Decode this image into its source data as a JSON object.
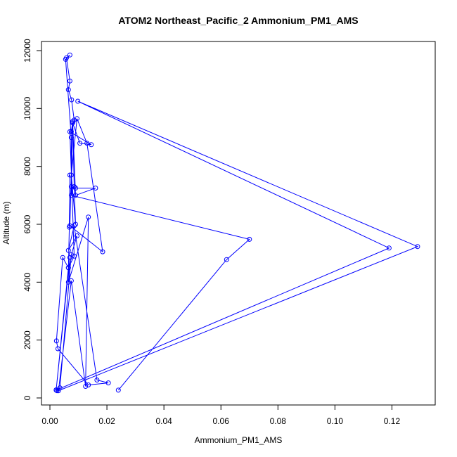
{
  "chart_data": {
    "type": "line",
    "title": "ATOM2 Northeast_Pacific_2 Ammonium_PM1_AMS",
    "xlabel": "Ammonium_PM1_AMS",
    "ylabel": "Altitude (m)",
    "xlim": [
      0,
      0.13
    ],
    "ylim": [
      0,
      12000
    ],
    "x_ticks": [
      0,
      0.02,
      0.04,
      0.06,
      0.08,
      0.1,
      0.12
    ],
    "x_tick_labels": [
      "0.00",
      "0.02",
      "0.04",
      "0.06",
      "0.08",
      "0.10",
      "0.12"
    ],
    "y_ticks": [
      0,
      2000,
      4000,
      6000,
      8000,
      10000,
      12000
    ],
    "y_tick_labels": [
      "0",
      "2000",
      "4000",
      "6000",
      "8000",
      "10000",
      "12000"
    ],
    "grid": false,
    "legend": "none",
    "series_color": "#0000ff",
    "series": [
      {
        "x": [
          0.024,
          0.062,
          0.07,
          0.0075,
          0.0075,
          0.0055,
          0.007,
          0.0058,
          0.007,
          0.0065,
          0.0076,
          0.0085,
          0.0075,
          0.008,
          0.0085,
          0.009,
          0.0075,
          0.0095,
          0.013,
          0.0185,
          0.007,
          0.008,
          0.0075,
          0.009,
          0.016,
          0.009,
          0.008,
          0.0105,
          0.0145,
          0.007,
          0.0085,
          0.0065,
          0.0045,
          0.0023,
          0.0028,
          0.0135,
          0.0205,
          0.0165,
          0.0085,
          0.0065,
          0.0095,
          0.0075,
          0.0035,
          0.0025,
          0.0022,
          0.119,
          0.0098,
          0.129,
          0.003,
          0.0075,
          0.0125,
          0.0135,
          0.0065,
          0.007,
          0.0022,
          0.0065,
          0.0068,
          0.007
        ],
        "y": [
          270,
          4780,
          5480,
          7000,
          9000,
          11700,
          11850,
          11750,
          10950,
          10650,
          10300,
          9600,
          9200,
          9550,
          7300,
          6000,
          7700,
          9650,
          8800,
          5050,
          5950,
          9550,
          7300,
          7250,
          7250,
          7000,
          9500,
          8800,
          8750,
          9200,
          4900,
          4500,
          4850,
          1970,
          1700,
          450,
          520,
          620,
          5950,
          5100,
          5600,
          4950,
          350,
          250,
          270,
          5180,
          10250,
          5230,
          250,
          4050,
          400,
          6250,
          4000,
          4850,
          280,
          4500,
          5900,
          7700
        ]
      }
    ]
  }
}
